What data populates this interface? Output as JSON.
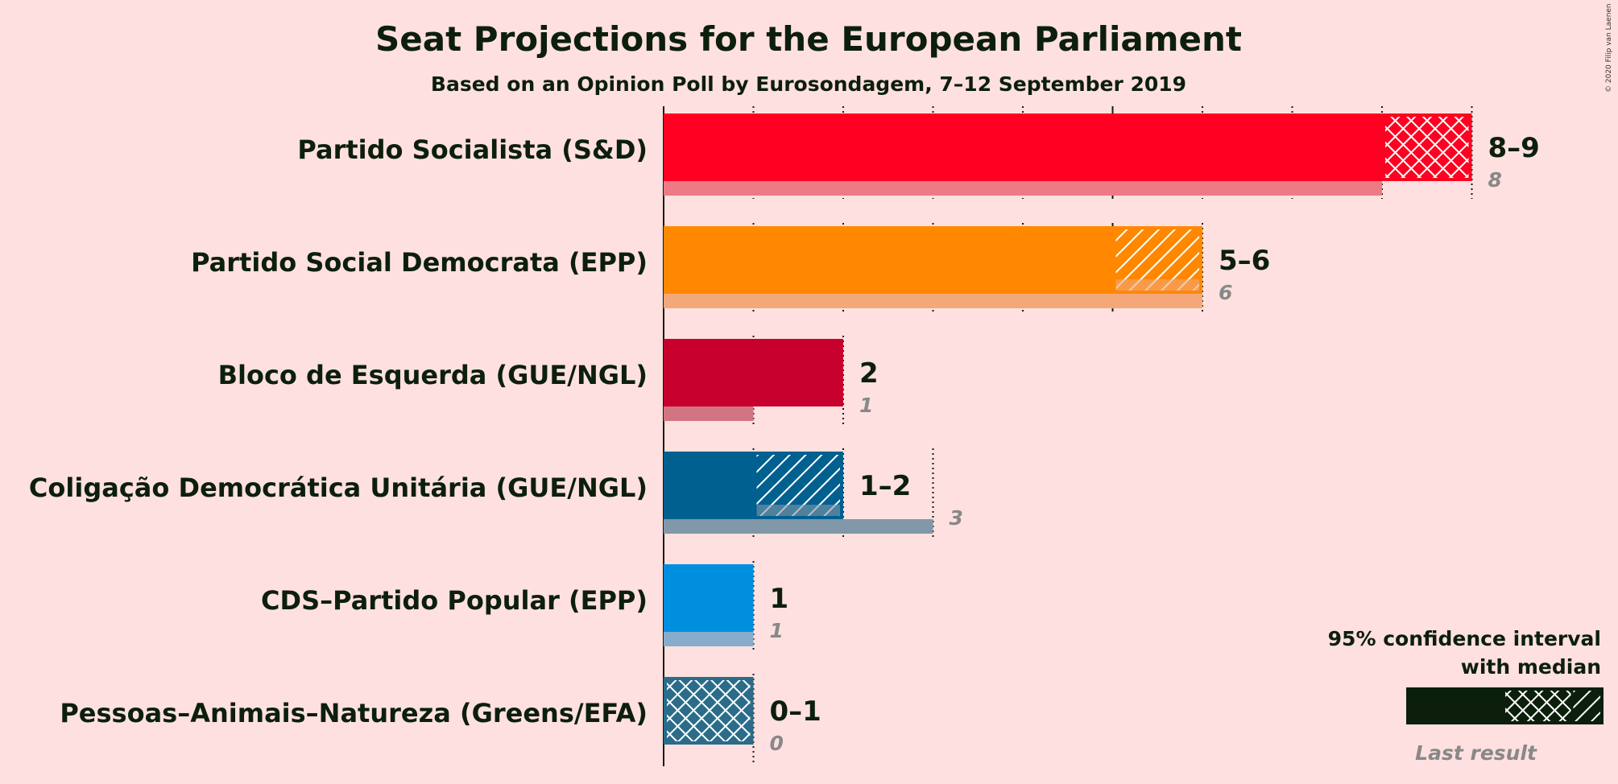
{
  "chart_data": {
    "type": "bar",
    "title": "Seat Projections for the European Parliament",
    "subtitle": "Based on an Opinion Poll by Eurosondagem, 7–12 September 2019",
    "xlim": [
      0,
      9
    ],
    "parties": [
      {
        "name": "Partido Socialista (S&D)",
        "low": 8,
        "median": 9,
        "high": 9,
        "last": 8,
        "range_label": "8–9",
        "last_label": "8",
        "color": "#FF0022",
        "last_color": "#EE7A85",
        "dashed_ticks": [
          1,
          2,
          3,
          4,
          5,
          6,
          7,
          8,
          9
        ],
        "solid_ticks": [
          0,
          5
        ]
      },
      {
        "name": "Partido Social Democrata (EPP)",
        "low": 5,
        "median": 5,
        "high": 6,
        "last": 6,
        "range_label": "5–6",
        "last_label": "6",
        "color": "#FF8800",
        "last_color": "#F4A87A",
        "dashed_ticks": [
          1,
          2,
          3,
          4,
          6
        ],
        "solid_ticks": [
          0,
          5
        ]
      },
      {
        "name": "Bloco de Esquerda (GUE/NGL)",
        "low": 2,
        "median": 2,
        "high": 2,
        "last": 1,
        "range_label": "2",
        "last_label": "1",
        "color": "#C8002E",
        "last_color": "#D37483",
        "dashed_ticks": [
          1,
          2
        ],
        "solid_ticks": [
          0
        ]
      },
      {
        "name": "Coligação Democrática Unitária (GUE/NGL)",
        "low": 1,
        "median": 1,
        "high": 2,
        "last": 3,
        "range_label": "1–2",
        "last_label": "3",
        "color": "#006090",
        "last_color": "#8198A8",
        "dashed_ticks": [
          1,
          2,
          3
        ],
        "solid_ticks": [
          0
        ]
      },
      {
        "name": "CDS–Partido Popular (EPP)",
        "low": 1,
        "median": 1,
        "high": 1,
        "last": 1,
        "range_label": "1",
        "last_label": "1",
        "color": "#008FDF",
        "last_color": "#88ACCC",
        "dashed_ticks": [
          1
        ],
        "solid_ticks": [
          0
        ]
      },
      {
        "name": "Pessoas–Animais–Natureza (Greens/EFA)",
        "low": 0,
        "median": 1,
        "high": 1,
        "last": 0,
        "range_label": "0–1",
        "last_label": "0",
        "color": "#2A6C8A",
        "last_color": "#8198A8",
        "dashed_ticks": [
          1
        ],
        "solid_ticks": [
          0
        ]
      }
    ],
    "legend": {
      "line1": "95% confidence interval",
      "line2": "with median",
      "last_result": "Last result",
      "color": "#0C1F0C"
    }
  },
  "copyright": "© 2020 Filip van Laenen"
}
